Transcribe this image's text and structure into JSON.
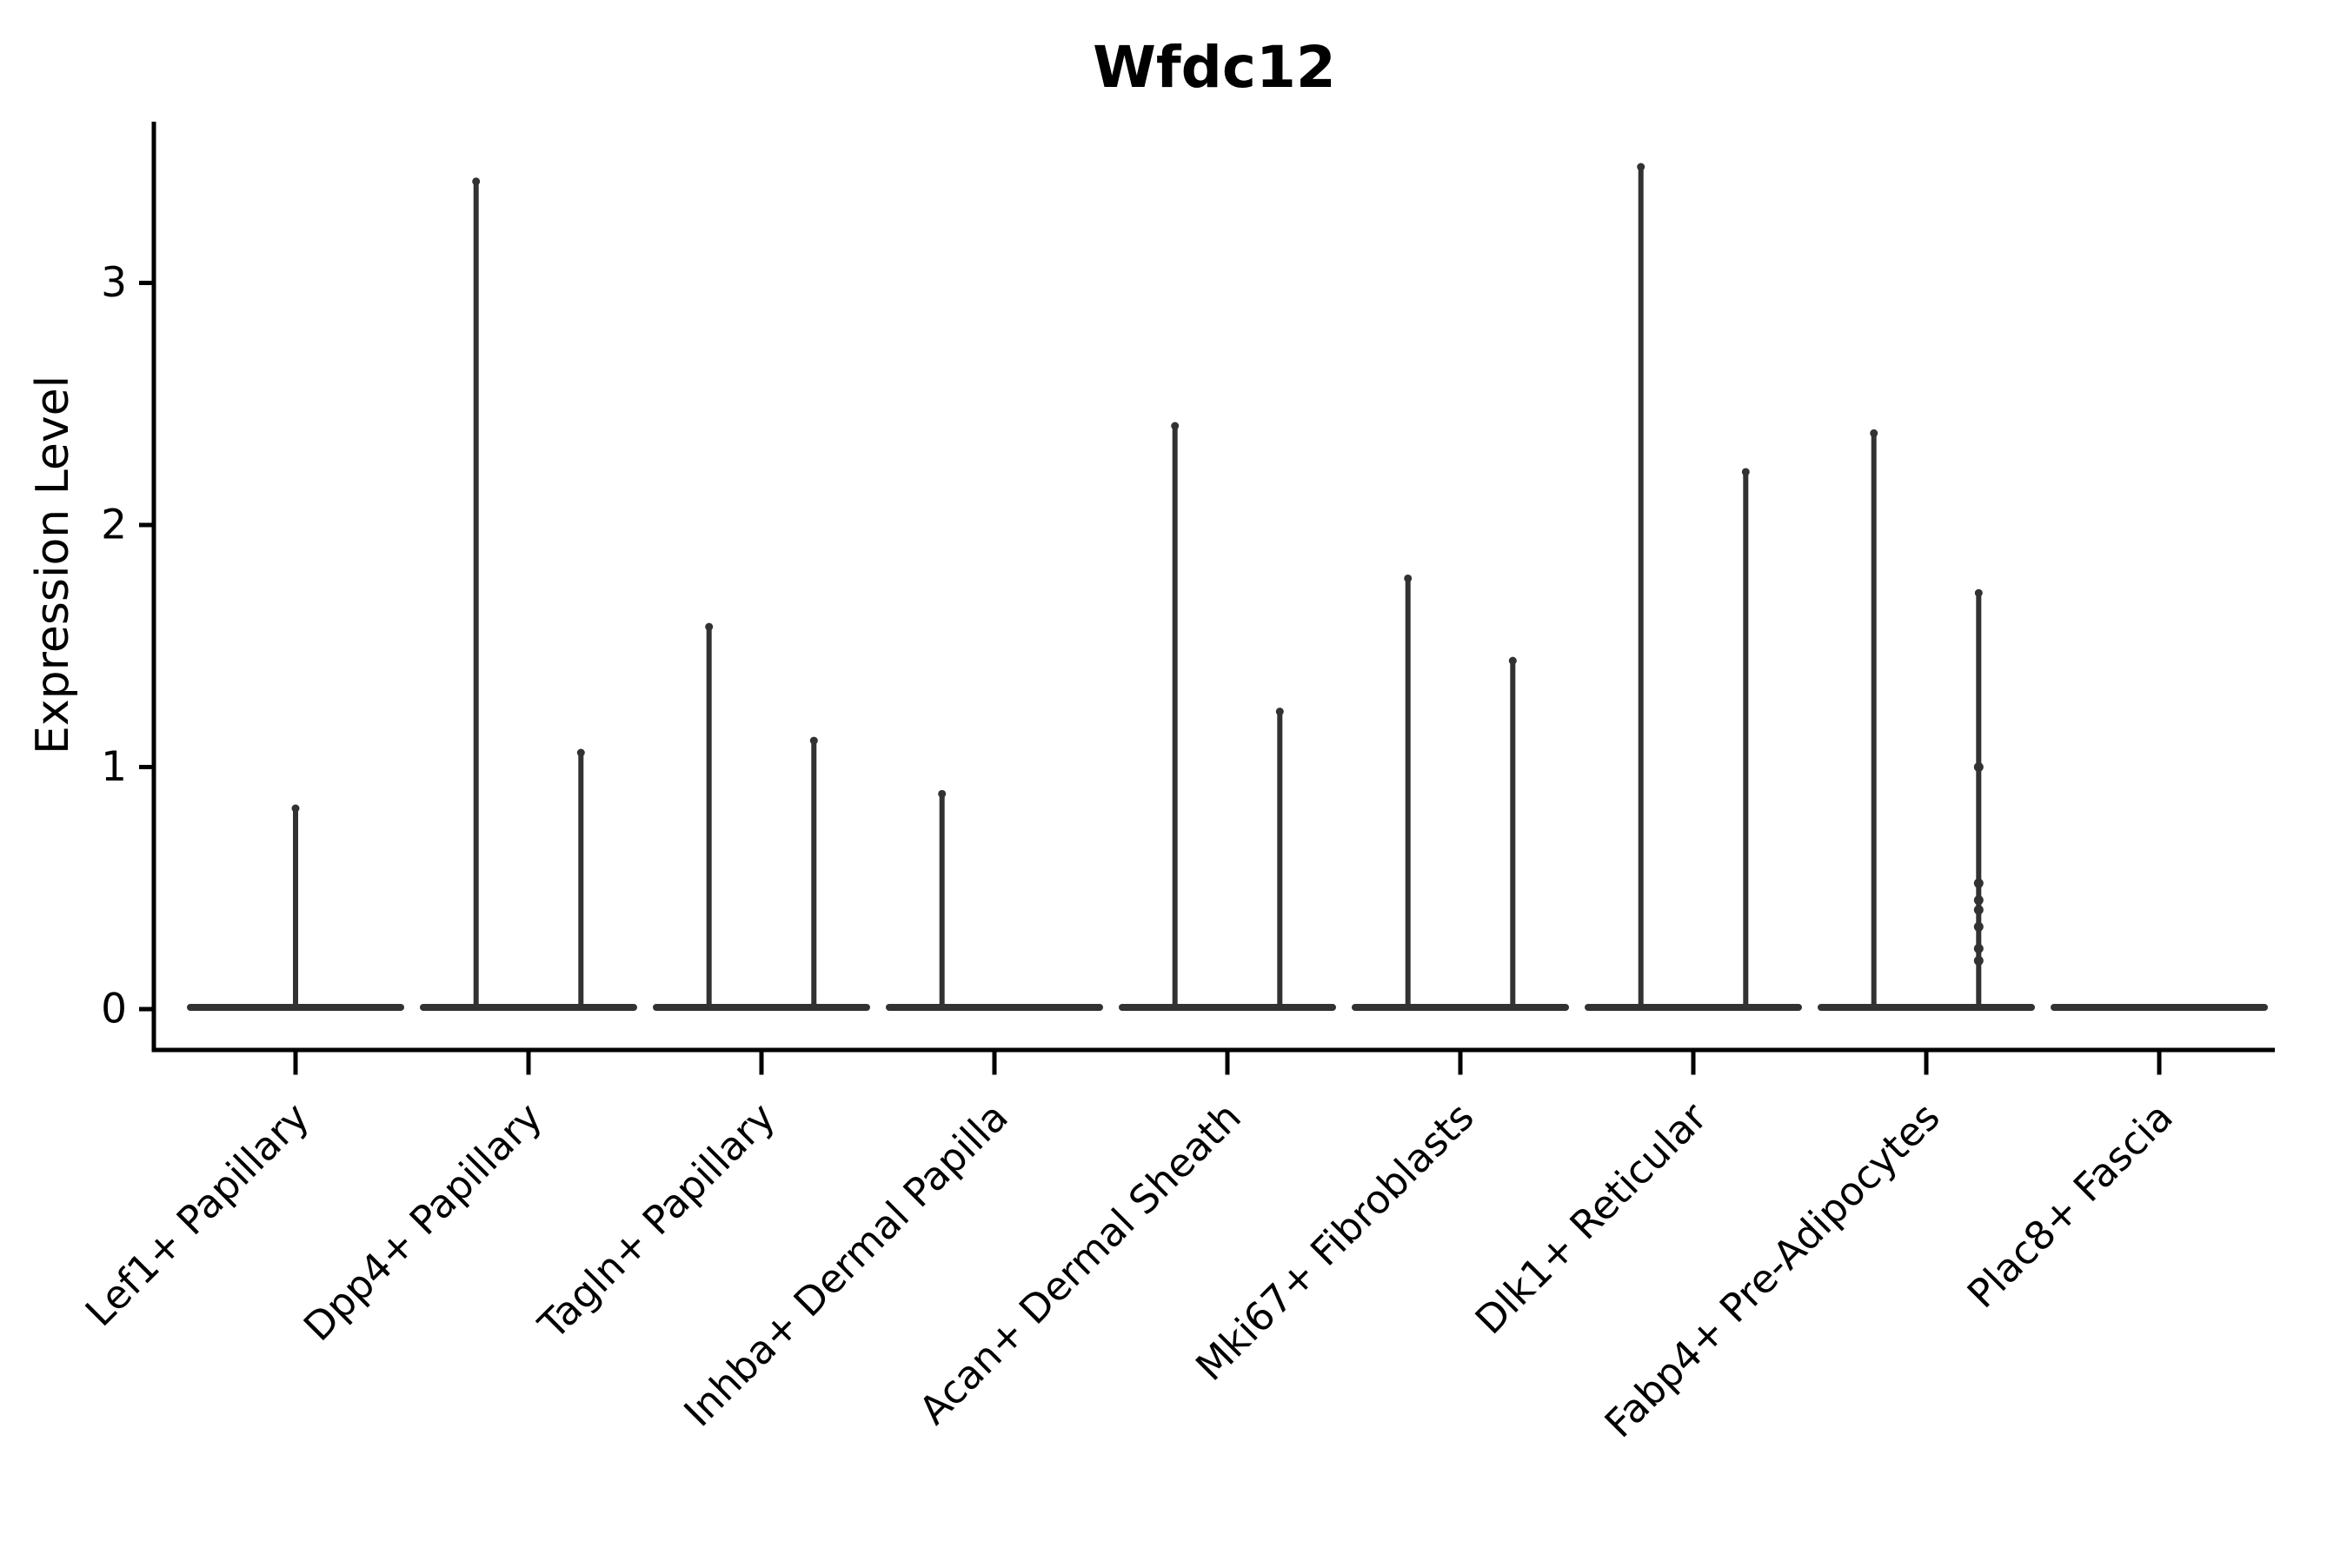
{
  "title": "Wfdc12",
  "chart_data": {
    "type": "violin",
    "title": "Wfdc12",
    "xlabel": "",
    "ylabel": "Expression Level",
    "ylim": [
      -0.18,
      3.68
    ],
    "yticks": [
      0,
      1,
      2,
      3
    ],
    "grid": false,
    "legend": "none",
    "description": "Split violin plot of Wfdc12 expression; violins collapse to a flat base at 0 with thin spikes up to each group's maximum expression",
    "colors": {
      "violin": "#323232",
      "axis": "#000000",
      "text": "#000000",
      "background": "#ffffff"
    },
    "categories": [
      "Lef1+ Papillary",
      "Dpp4+ Papillary",
      "Tagln+ Papillary",
      "Inhba+ Dermal Papilla",
      "Acan+ Dermal Sheath",
      "Mki67+ Fibroblasts",
      "Dlk1+ Reticular",
      "Fabp4+ Pre-Adipocytes",
      "Plac8+ Fascia"
    ],
    "series": [
      {
        "category": "Lef1+ Papillary",
        "violins": [
          {
            "offset": 0,
            "max": 0.84
          }
        ]
      },
      {
        "category": "Dpp4+ Papillary",
        "violins": [
          {
            "offset": -0.225,
            "max": 3.43
          },
          {
            "offset": 0.225,
            "max": 1.07
          }
        ]
      },
      {
        "category": "Tagln+ Papillary",
        "violins": [
          {
            "offset": -0.225,
            "max": 1.59
          },
          {
            "offset": 0.225,
            "max": 1.12
          }
        ]
      },
      {
        "category": "Inhba+ Dermal Papilla",
        "violins": [
          {
            "offset": -0.225,
            "max": 0.9
          },
          {
            "offset": 0.225,
            "max": 0.02
          }
        ]
      },
      {
        "category": "Acan+ Dermal Sheath",
        "violins": [
          {
            "offset": -0.225,
            "max": 2.42
          },
          {
            "offset": 0.225,
            "max": 1.24
          }
        ]
      },
      {
        "category": "Mki67+ Fibroblasts",
        "violins": [
          {
            "offset": -0.225,
            "max": 1.79
          },
          {
            "offset": 0.225,
            "max": 1.45
          }
        ]
      },
      {
        "category": "Dlk1+ Reticular",
        "violins": [
          {
            "offset": -0.225,
            "max": 3.49
          },
          {
            "offset": 0.225,
            "max": 2.23
          }
        ]
      },
      {
        "category": "Fabp4+ Pre-Adipocytes",
        "violins": [
          {
            "offset": -0.225,
            "max": 2.39
          },
          {
            "offset": 0.225,
            "max": 1.73,
            "points": [
              1.0,
              0.52,
              0.45,
              0.41,
              0.34,
              0.25,
              0.2
            ]
          }
        ]
      },
      {
        "category": "Plac8+ Fascia",
        "violins": [
          {
            "offset": 0,
            "max": 0.0
          }
        ]
      }
    ]
  }
}
